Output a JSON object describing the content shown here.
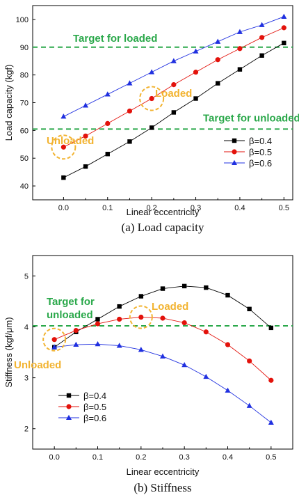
{
  "chart_data": [
    {
      "type": "line",
      "caption": "(a) Load capacity",
      "xlabel": "Linear eccentricity",
      "ylabel": "Load capacity (kgf)",
      "xlim": [
        -0.07,
        0.52
      ],
      "ylim": [
        35,
        105
      ],
      "xticks": [
        "0.0",
        "0.1",
        "0.2",
        "0.3",
        "0.4",
        "0.5"
      ],
      "yticks": [
        "40",
        "50",
        "60",
        "70",
        "80",
        "90",
        "100"
      ],
      "x": [
        0,
        0.05,
        0.1,
        0.15,
        0.2,
        0.25,
        0.3,
        0.35,
        0.4,
        0.45,
        0.5
      ],
      "series": [
        {
          "name": "β=0.4",
          "color": "#000000",
          "marker": "square",
          "values": [
            43,
            47,
            51.5,
            56,
            61,
            66.5,
            71.5,
            77,
            82,
            87,
            91.5
          ]
        },
        {
          "name": "β=0.5",
          "color": "#e3120b",
          "marker": "circle",
          "values": [
            54,
            58,
            62.5,
            67,
            71.5,
            76.5,
            81,
            85.5,
            89.5,
            93.5,
            97
          ]
        },
        {
          "name": "β=0.6",
          "color": "#2030e0",
          "marker": "triangle",
          "values": [
            65,
            69,
            73,
            77,
            81,
            85,
            88.5,
            92,
            95.5,
            98,
            101
          ]
        }
      ],
      "reference_lines": [
        {
          "y": 90,
          "label": "Target for loaded",
          "color": "#2aa84a"
        },
        {
          "y": 60.5,
          "label": "Target for unloaded",
          "color": "#2aa84a"
        }
      ],
      "annotations": [
        {
          "label": "Unloaded",
          "x": 0,
          "y": 54,
          "color": "#f2b330"
        },
        {
          "label": "Loaded",
          "x": 0.2,
          "y": 71.5,
          "color": "#f2b330"
        }
      ],
      "legend_position": "bottom-right"
    },
    {
      "type": "line",
      "caption": "(b) Stiffness",
      "xlabel": "Linear eccentricity",
      "ylabel": "Stiffness (kgf/μm)",
      "xlim": [
        -0.05,
        0.55
      ],
      "ylim": [
        1.6,
        5.4
      ],
      "xticks": [
        "0.0",
        "0.1",
        "0.2",
        "0.3",
        "0.4",
        "0.5"
      ],
      "yticks": [
        "2",
        "3",
        "4",
        "5"
      ],
      "x": [
        0,
        0.05,
        0.1,
        0.15,
        0.2,
        0.25,
        0.3,
        0.35,
        0.4,
        0.45,
        0.5
      ],
      "series": [
        {
          "name": "β=0.4",
          "color": "#000000",
          "marker": "square",
          "values": [
            3.6,
            3.9,
            4.15,
            4.4,
            4.6,
            4.75,
            4.8,
            4.77,
            4.62,
            4.35,
            3.98
          ]
        },
        {
          "name": "β=0.5",
          "color": "#e3120b",
          "marker": "circle",
          "values": [
            3.75,
            3.93,
            4.06,
            4.15,
            4.19,
            4.17,
            4.08,
            3.9,
            3.65,
            3.33,
            2.95
          ]
        },
        {
          "name": "β=0.6",
          "color": "#2030e0",
          "marker": "triangle",
          "values": [
            3.6,
            3.65,
            3.66,
            3.63,
            3.55,
            3.42,
            3.25,
            3.02,
            2.75,
            2.45,
            2.12
          ]
        }
      ],
      "reference_lines": [
        {
          "y": 4.02,
          "label": "Target for\nunloaded",
          "color": "#2aa84a"
        }
      ],
      "annotations": [
        {
          "label": "Unloaded",
          "x": 0,
          "y": 3.75,
          "color": "#f2b330"
        },
        {
          "label": "Loaded",
          "x": 0.2,
          "y": 4.19,
          "color": "#f2b330"
        }
      ],
      "legend_position": "bottom-left"
    }
  ]
}
